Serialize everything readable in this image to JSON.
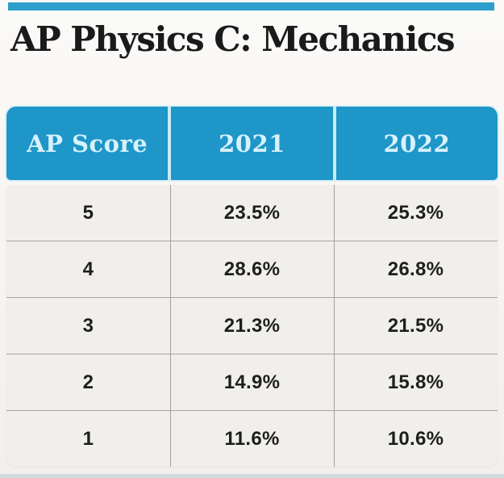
{
  "page": {
    "title": "AP Physics C: Mechanics",
    "accent_color": "#2d9ecb",
    "header_color": "#1e96c8",
    "header_text_color": "#d7f2fc",
    "body_background": "#f1efec",
    "text_color": "#1e1e1e"
  },
  "table": {
    "header": [
      "AP Score",
      "2021",
      "2022"
    ],
    "rows": [
      [
        "5",
        "23.5%",
        "25.3%"
      ],
      [
        "4",
        "28.6%",
        "26.8%"
      ],
      [
        "3",
        "21.3%",
        "21.5%"
      ],
      [
        "2",
        "14.9%",
        "15.8%"
      ],
      [
        "1",
        "11.6%",
        "10.6%"
      ]
    ]
  },
  "chart_data": {
    "type": "table",
    "title": "AP Physics C: Mechanics",
    "columns": [
      "AP Score",
      "2021",
      "2022"
    ],
    "categories": [
      "5",
      "4",
      "3",
      "2",
      "1"
    ],
    "series": [
      {
        "name": "2021",
        "values": [
          23.5,
          28.6,
          21.3,
          14.9,
          11.6
        ]
      },
      {
        "name": "2022",
        "values": [
          25.3,
          26.8,
          21.5,
          15.8,
          10.6
        ]
      }
    ],
    "unit": "%"
  }
}
